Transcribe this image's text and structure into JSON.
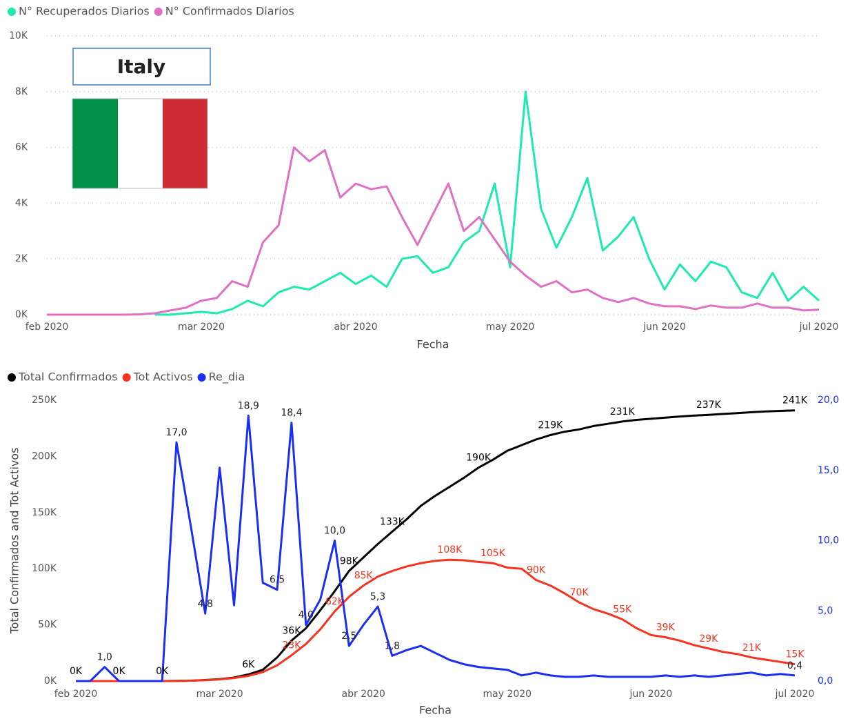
{
  "chart_data": [
    {
      "type": "line",
      "annotations": [
        "Italy"
      ],
      "xlabel": "Fecha",
      "categories": [
        "feb 2020",
        null,
        null,
        null,
        null,
        null,
        null,
        null,
        null,
        null,
        "mar 2020",
        null,
        null,
        null,
        null,
        null,
        null,
        null,
        null,
        null,
        "abr 2020",
        null,
        null,
        null,
        null,
        null,
        null,
        null,
        null,
        null,
        "may 2020",
        null,
        null,
        null,
        null,
        null,
        null,
        null,
        null,
        null,
        "jun 2020",
        null,
        null,
        null,
        null,
        null,
        null,
        null,
        null,
        null,
        "jul 2020"
      ],
      "ylim": [
        0,
        10000
      ],
      "yticks": [
        {
          "value": 0,
          "label": "0K"
        },
        {
          "value": 2000,
          "label": "2K"
        },
        {
          "value": 4000,
          "label": "4K"
        },
        {
          "value": 6000,
          "label": "6K"
        },
        {
          "value": 8000,
          "label": "8K"
        },
        {
          "value": 10000,
          "label": "10K"
        }
      ],
      "grid": true,
      "series": [
        {
          "name": "N° Recuperados Diarios",
          "color": "#1de9b0",
          "values": [
            null,
            null,
            null,
            null,
            null,
            null,
            null,
            0,
            0,
            50,
            100,
            50,
            200,
            500,
            300,
            800,
            1000,
            900,
            1200,
            1500,
            1100,
            1400,
            1000,
            2000,
            2100,
            1500,
            1700,
            2600,
            3000,
            4700,
            1700,
            8000,
            3800,
            2400,
            3500,
            4900,
            2300,
            2800,
            3500,
            2000,
            900,
            1800,
            1200,
            1900,
            1700,
            800,
            600,
            1500,
            500,
            1000,
            500
          ]
        },
        {
          "name": "N° Confirmados Diarios",
          "color": "#e070c4",
          "values": [
            0,
            0,
            0,
            0,
            0,
            0,
            10,
            50,
            150,
            250,
            500,
            600,
            1200,
            1000,
            2600,
            3200,
            6000,
            5500,
            5900,
            4200,
            4700,
            4500,
            4600,
            3500,
            2500,
            3600,
            4700,
            3000,
            3500,
            2700,
            1900,
            1400,
            1000,
            1200,
            800,
            900,
            600,
            450,
            600,
            400,
            300,
            300,
            200,
            330,
            250,
            250,
            400,
            250,
            250,
            150,
            180
          ]
        }
      ]
    },
    {
      "type": "line",
      "xlabel": "Fecha",
      "ylabel": "Total Confirmados and Tot Activos",
      "categories": [
        "feb 2020",
        null,
        null,
        null,
        null,
        null,
        null,
        null,
        null,
        null,
        "mar 2020",
        null,
        null,
        null,
        null,
        null,
        null,
        null,
        null,
        null,
        "abr 2020",
        null,
        null,
        null,
        null,
        null,
        null,
        null,
        null,
        null,
        "may 2020",
        null,
        null,
        null,
        null,
        null,
        null,
        null,
        null,
        null,
        "jun 2020",
        null,
        null,
        null,
        null,
        null,
        null,
        null,
        null,
        null,
        "jul 2020"
      ],
      "ylim": [
        0,
        250000
      ],
      "yticks": [
        {
          "value": 0,
          "label": "0K"
        },
        {
          "value": 50000,
          "label": "50K"
        },
        {
          "value": 100000,
          "label": "100K"
        },
        {
          "value": 150000,
          "label": "150K"
        },
        {
          "value": 200000,
          "label": "200K"
        },
        {
          "value": 250000,
          "label": "250K"
        }
      ],
      "y2lim": [
        0,
        20
      ],
      "y2ticks": [
        {
          "value": 0,
          "label": "0,0"
        },
        {
          "value": 5,
          "label": "5,0"
        },
        {
          "value": 10,
          "label": "10,0"
        },
        {
          "value": 15,
          "label": "15,0"
        },
        {
          "value": 20,
          "label": "20,0"
        }
      ],
      "grid": false,
      "series": [
        {
          "name": "Total Confirmados",
          "color": "#000000",
          "values": [
            0,
            0,
            0,
            0,
            0,
            0,
            0,
            100,
            300,
            900,
            1700,
            3100,
            5900,
            10000,
            21000,
            36000,
            47000,
            63000,
            80000,
            98000,
            110000,
            122000,
            133000,
            144000,
            156000,
            165000,
            173000,
            181000,
            190000,
            197000,
            205000,
            210000,
            215000,
            219000,
            222000,
            224000,
            227000,
            229000,
            231000,
            232500,
            233500,
            234500,
            235500,
            236300,
            237000,
            237800,
            238500,
            239300,
            240000,
            240500,
            241000
          ],
          "value_labels": [
            "0K",
            null,
            null,
            "0K",
            null,
            null,
            "0K",
            null,
            null,
            null,
            null,
            null,
            "6K",
            null,
            null,
            "36K",
            null,
            null,
            null,
            "98K",
            null,
            null,
            "133K",
            null,
            null,
            null,
            null,
            null,
            "190K",
            null,
            null,
            null,
            null,
            "219K",
            null,
            null,
            null,
            null,
            "231K",
            null,
            null,
            null,
            null,
            null,
            "237K",
            null,
            null,
            null,
            null,
            null,
            "241K"
          ]
        },
        {
          "name": "Tot Activos",
          "color": "#f5331f",
          "values": [
            0,
            0,
            0,
            0,
            0,
            0,
            0,
            0,
            300,
            800,
            1500,
            2700,
            4600,
            8000,
            14000,
            23000,
            33000,
            46000,
            62000,
            75000,
            85000,
            93000,
            98000,
            102000,
            105000,
            107000,
            108000,
            107500,
            106000,
            105000,
            101000,
            100000,
            90000,
            85000,
            78000,
            70000,
            64000,
            60000,
            55000,
            47000,
            41000,
            39000,
            36000,
            32000,
            29000,
            26000,
            24000,
            21000,
            19000,
            17000,
            15000
          ],
          "value_labels": [
            null,
            null,
            null,
            null,
            null,
            null,
            null,
            null,
            null,
            null,
            null,
            null,
            null,
            null,
            null,
            "23K",
            null,
            null,
            "62K",
            null,
            "85K",
            null,
            null,
            null,
            null,
            null,
            "108K",
            null,
            null,
            "105K",
            null,
            null,
            "90K",
            null,
            null,
            "70K",
            null,
            null,
            "55K",
            null,
            null,
            "39K",
            null,
            null,
            "29K",
            null,
            null,
            "21K",
            null,
            null,
            "15K"
          ]
        },
        {
          "name": "Re_dia",
          "color": "#1a2ff0",
          "axis": "y2",
          "values": [
            0,
            0,
            1.0,
            0,
            0,
            0,
            0,
            17.0,
            11,
            4.8,
            15.2,
            5.4,
            18.9,
            7.0,
            6.5,
            18.4,
            4.0,
            5.8,
            10.0,
            2.5,
            4.0,
            5.3,
            1.8,
            2.2,
            2.5,
            2.0,
            1.5,
            1.2,
            1.0,
            0.9,
            0.8,
            0.4,
            0.6,
            0.4,
            0.3,
            0.3,
            0.4,
            0.3,
            0.3,
            0.3,
            0.3,
            0.4,
            0.3,
            0.4,
            0.3,
            0.4,
            0.5,
            0.6,
            0.4,
            0.5,
            0.4
          ],
          "value_labels": [
            null,
            null,
            "1,0",
            null,
            null,
            null,
            null,
            "17,0",
            null,
            "4,8",
            null,
            null,
            "18,9",
            null,
            "6,5",
            "18,4",
            "4,0",
            null,
            "10,0",
            "2,5",
            null,
            "5,3",
            "1,8",
            null,
            null,
            null,
            null,
            null,
            null,
            null,
            null,
            null,
            null,
            null,
            null,
            null,
            null,
            null,
            null,
            null,
            null,
            null,
            null,
            null,
            null,
            null,
            null,
            null,
            null,
            null,
            "0,4"
          ]
        }
      ]
    }
  ]
}
